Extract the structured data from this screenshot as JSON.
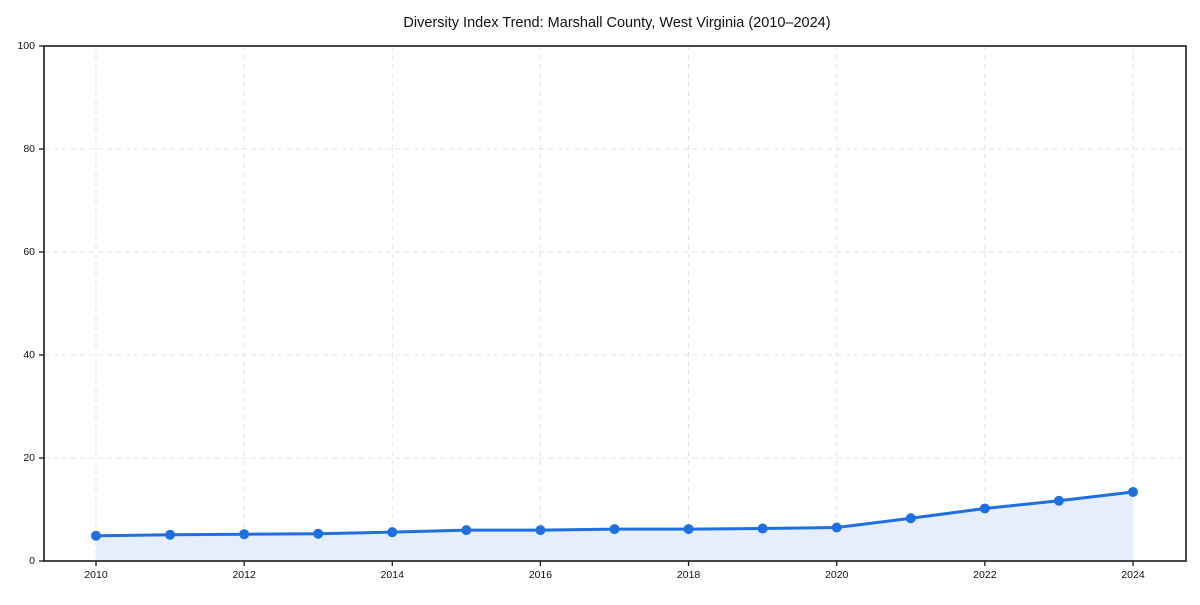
{
  "chart_data": {
    "type": "line",
    "title": "Diversity Index Trend: Marshall County, West Virginia (2010–2024)",
    "x": [
      2010,
      2011,
      2012,
      2013,
      2014,
      2015,
      2016,
      2017,
      2018,
      2019,
      2020,
      2021,
      2022,
      2023,
      2024
    ],
    "series": [
      {
        "name": "Diversity Index",
        "values": [
          4.9,
          5.1,
          5.2,
          5.3,
          5.6,
          6.0,
          6.0,
          6.2,
          6.2,
          6.3,
          6.5,
          8.3,
          10.2,
          11.7,
          13.4
        ]
      }
    ],
    "xlabel": "",
    "ylabel": "",
    "ylim": [
      0,
      100
    ],
    "yticks": [
      0,
      20,
      40,
      60,
      80,
      100
    ],
    "ytick_labels": [
      "0",
      "20",
      "40",
      "60",
      "80",
      "100"
    ],
    "xticks": [
      2010,
      2012,
      2014,
      2016,
      2018,
      2020,
      2022,
      2024
    ],
    "xtick_labels": [
      "2010",
      "2012",
      "2014",
      "2016",
      "2018",
      "2020",
      "2022",
      "2024"
    ],
    "grid": true,
    "grid_style": "dashed",
    "legend_position": "none",
    "area_fill": true,
    "marker": "circle",
    "colors": {
      "line": "#1f6fe0",
      "marker": "#1f6fe0",
      "area": "#e6eefb",
      "grid": "#e3e3e3",
      "axis": "#1a1a1a",
      "text": "#111111",
      "background": "#ffffff"
    }
  }
}
